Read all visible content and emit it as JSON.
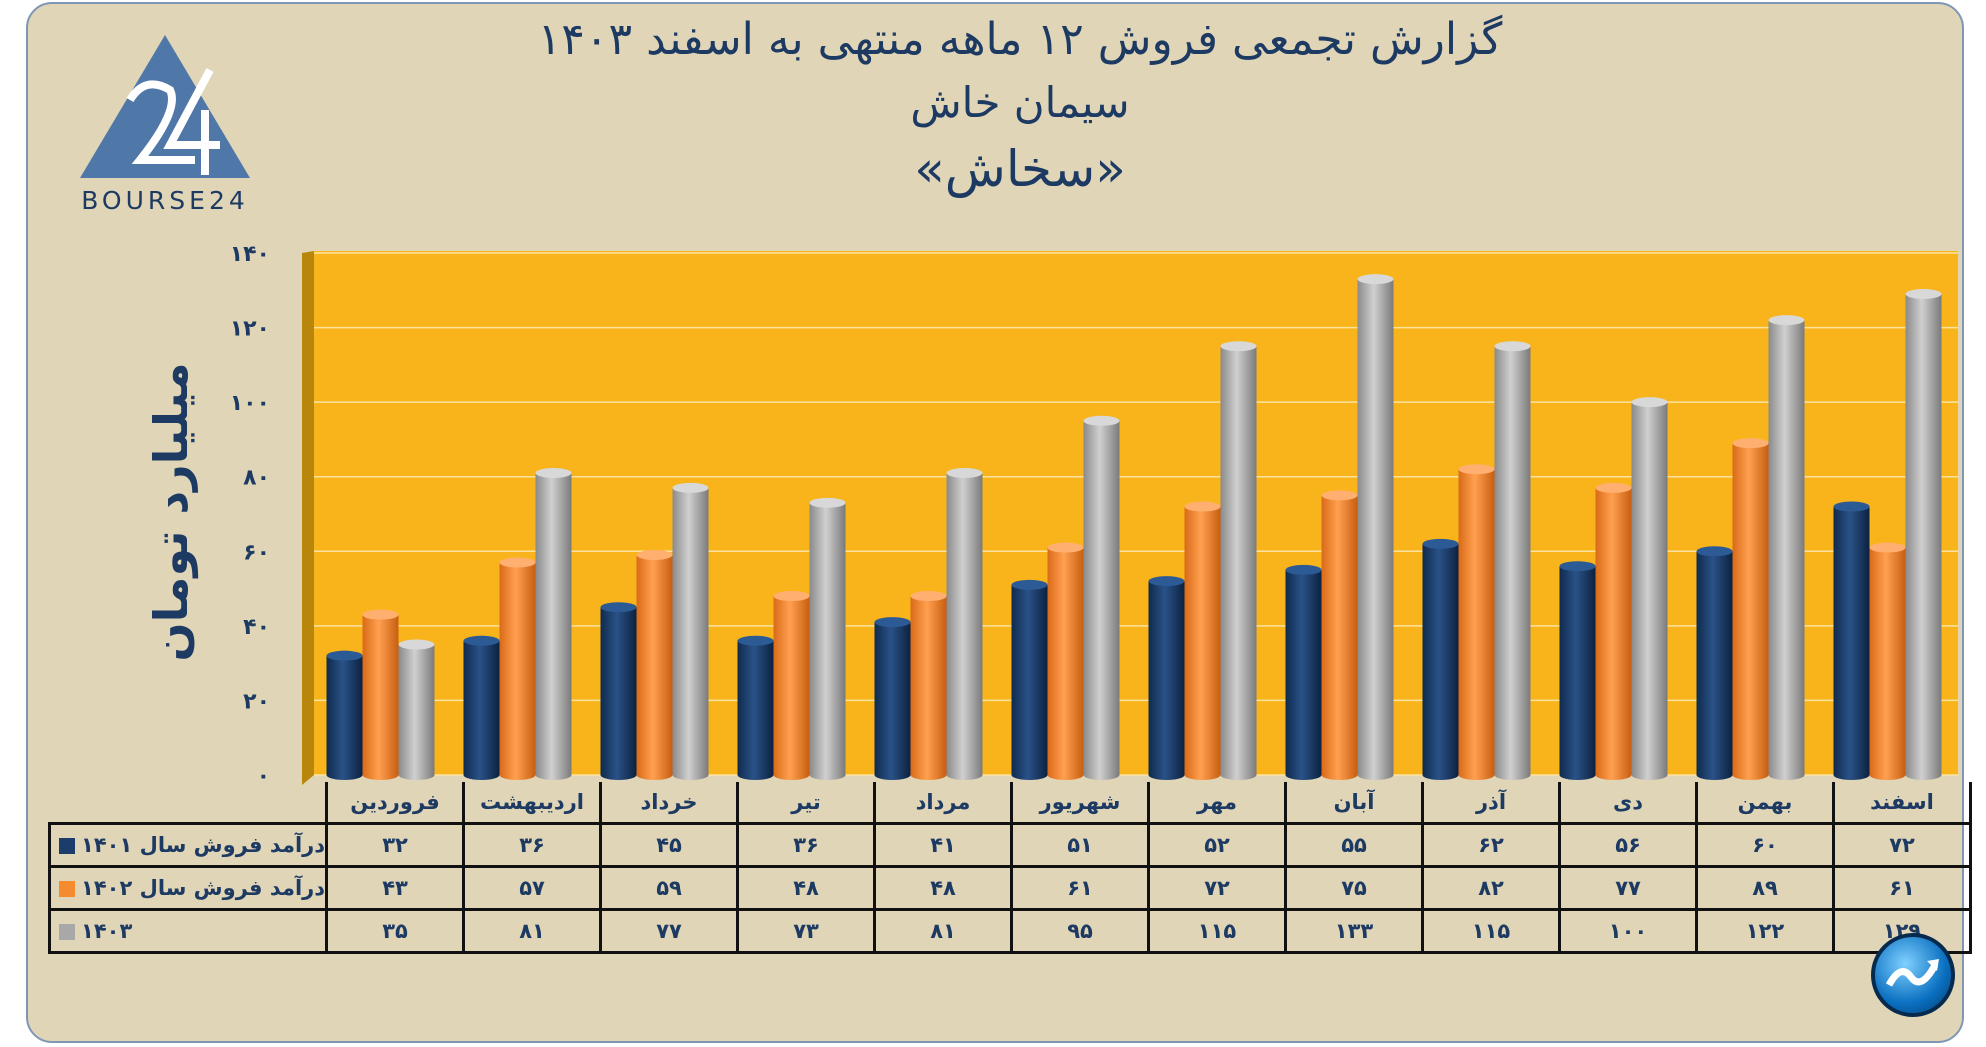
{
  "header": {
    "title_line1": "گزارش تجمعی فروش ۱۲ ماهه منتهی به اسفند ۱۴۰۳",
    "title_line2": "سیمان خاش",
    "title_line3": "«سخاش»"
  },
  "logo": {
    "text": "BOURSE24",
    "mark": "24"
  },
  "colors": {
    "series_1401": "#1b3d6b",
    "series_1402": "#f58a2e",
    "series_1403": "#a8a8a8",
    "plot_background": "#f8b41a",
    "page_background": "#e0d5b7",
    "text": "#1d3a63"
  },
  "chart_data": {
    "type": "bar",
    "ylabel": "میلیارد تومان",
    "ylim": [
      0,
      140
    ],
    "yticks": [
      0,
      20,
      40,
      60,
      80,
      100,
      120,
      140
    ],
    "ytick_labels": [
      "۰",
      "۲۰",
      "۴۰",
      "۶۰",
      "۸۰",
      "۱۰۰",
      "۱۲۰",
      "۱۴۰"
    ],
    "grid": true,
    "legend": "table-left",
    "categories": [
      "فروردین",
      "اردیبهشت",
      "خرداد",
      "تیر",
      "مرداد",
      "شهریور",
      "مهر",
      "آبان",
      "آذر",
      "دی",
      "بهمن",
      "اسفند"
    ],
    "series": [
      {
        "name": "درآمد فروش سال ۱۴۰۱",
        "values": [
          32,
          36,
          45,
          36,
          41,
          51,
          52,
          55,
          62,
          56,
          60,
          72
        ],
        "labels": [
          "۳۲",
          "۳۶",
          "۴۵",
          "۳۶",
          "۴۱",
          "۵۱",
          "۵۲",
          "۵۵",
          "۶۲",
          "۵۶",
          "۶۰",
          "۷۲"
        ]
      },
      {
        "name": "درآمد فروش سال ۱۴۰۲",
        "values": [
          43,
          57,
          59,
          48,
          48,
          61,
          72,
          75,
          82,
          77,
          89,
          61
        ],
        "labels": [
          "۴۳",
          "۵۷",
          "۵۹",
          "۴۸",
          "۴۸",
          "۶۱",
          "۷۲",
          "۷۵",
          "۸۲",
          "۷۷",
          "۸۹",
          "۶۱"
        ]
      },
      {
        "name": "۱۴۰۳",
        "values": [
          35,
          81,
          77,
          73,
          81,
          95,
          115,
          133,
          115,
          100,
          122,
          129
        ],
        "labels": [
          "۳۵",
          "۸۱",
          "۷۷",
          "۷۳",
          "۸۱",
          "۹۵",
          "۱۱۵",
          "۱۳۳",
          "۱۱۵",
          "۱۰۰",
          "۱۲۲",
          "۱۲۹"
        ]
      }
    ]
  }
}
